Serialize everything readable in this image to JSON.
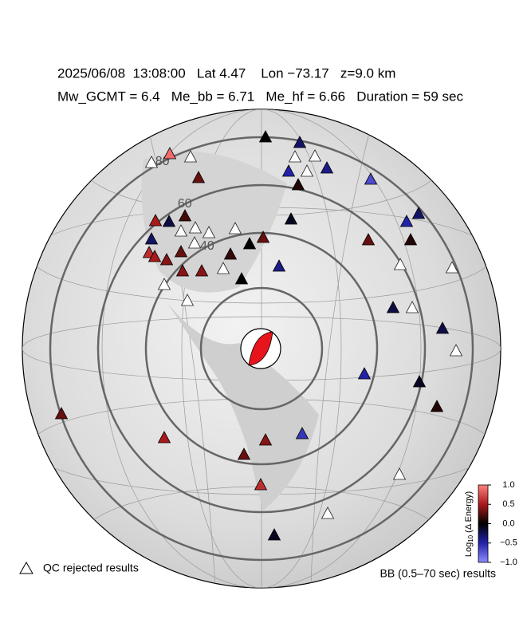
{
  "header": {
    "line1": "2025/06/08  13:08:00   Lat 4.47    Lon −73.17   z=9.0 km",
    "line2": "Mw_GCMT = 6.4   Me_bb = 6.71   Me_hf = 6.66   Duration = 59 sec"
  },
  "map": {
    "distance_rings": [
      40,
      60,
      80
    ],
    "station_values": [
      0,
      -0.3,
      0.9,
      null,
      null,
      null,
      null,
      -0.5,
      -0.4,
      null,
      -0.7,
      0.3,
      0.1,
      -0.3,
      -0.5,
      -0.1,
      0.2,
      0.5,
      -0.2,
      null,
      null,
      null,
      -0.3,
      null,
      0.3,
      0.1,
      0.3,
      0,
      null,
      0.3,
      0.6,
      0.5,
      0.4,
      0.15,
      null,
      -0.4,
      null,
      0.4,
      0.4,
      null,
      null,
      0,
      null,
      -0.2,
      null,
      -0.2,
      null,
      -0.5,
      -0.1,
      0.1,
      0.3,
      -0.6,
      0.5,
      0.4,
      0.3,
      null,
      0.6,
      null,
      -0.1
    ]
  },
  "legend": {
    "qc_label": "QC rejected results",
    "bb_label": "BB (0.5–70 sec) results"
  },
  "colorbar": {
    "label_base": "Log",
    "label_subscript": "10",
    "label_rest": " (Δ Energy)",
    "lim": [
      -1,
      1
    ],
    "ticks": [
      {
        "value": 1,
        "label": "1.0"
      },
      {
        "value": 0.5,
        "label": "0.5"
      },
      {
        "value": 0,
        "label": "0.0"
      },
      {
        "value": -0.5,
        "label": "−0.5"
      },
      {
        "value": -1,
        "label": "−1.0"
      }
    ]
  }
}
